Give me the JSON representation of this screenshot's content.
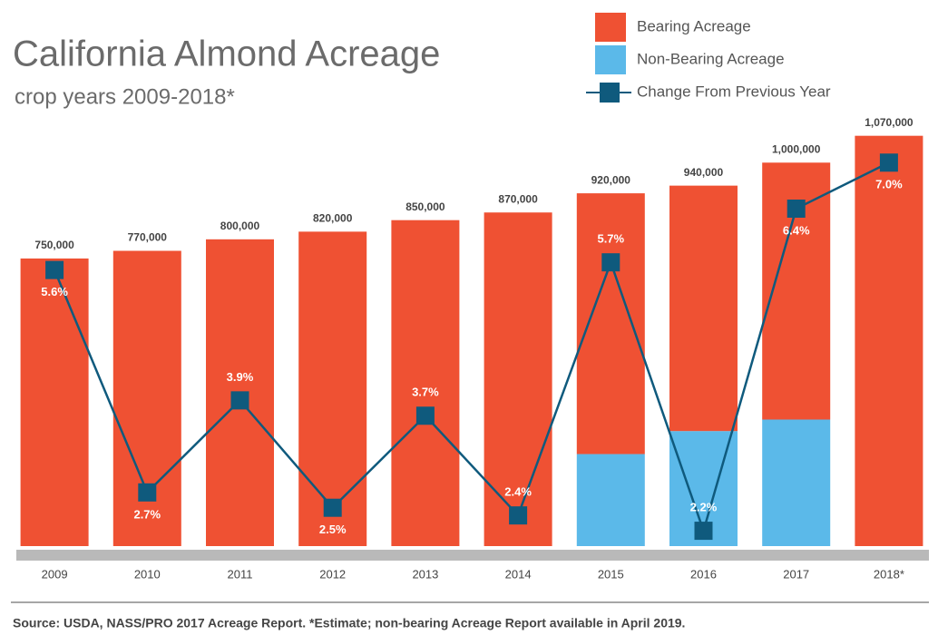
{
  "chart_data": {
    "type": "bar",
    "title": "California Almond Acreage",
    "subtitle": "crop years 2009-2018*",
    "source": "Source: USDA, NASS/PRO 2017 Acreage Report. *Estimate; non-bearing Acreage Report available in April 2019.",
    "categories": [
      "2009",
      "2010",
      "2011",
      "2012",
      "2013",
      "2014",
      "2015",
      "2016",
      "2017",
      "2018*"
    ],
    "series": [
      {
        "name": "Bearing Acreage",
        "color": "#ef5133",
        "values": [
          750000,
          770000,
          800000,
          820000,
          850000,
          870000,
          680000,
          640000,
          670000,
          1070000
        ]
      },
      {
        "name": "Non-Bearing Acreage",
        "color": "#5bb9e9",
        "values": [
          null,
          null,
          null,
          null,
          null,
          null,
          240000,
          300000,
          330000,
          null
        ],
        "value_labels": [
          null,
          null,
          null,
          null,
          null,
          null,
          "240,000",
          "300,000",
          "330,000",
          null
        ]
      },
      {
        "name": "Change From Previous Year",
        "color": "#0f5a7d",
        "type": "line",
        "axis": "y2",
        "values": [
          5.6,
          2.7,
          3.9,
          2.5,
          3.7,
          2.4,
          5.7,
          2.2,
          6.4,
          7.0
        ],
        "value_labels": [
          "5.6%",
          "2.7%",
          "3.9%",
          "2.5%",
          "3.7%",
          "2.4%",
          "5.7%",
          "2.2%",
          "6.4%",
          "7.0%"
        ]
      }
    ],
    "totals": [
      750000,
      770000,
      800000,
      820000,
      850000,
      870000,
      920000,
      940000,
      1000000,
      1070000
    ],
    "total_labels": [
      "750,000",
      "770,000",
      "800,000",
      "820,000",
      "850,000",
      "870,000",
      "920,000",
      "940,000",
      "1,000,000",
      "1,070,000"
    ],
    "ylim": [
      0,
      1100000
    ],
    "y2lim": [
      2,
      7.5
    ],
    "stacked": true,
    "legend": "top-right"
  }
}
